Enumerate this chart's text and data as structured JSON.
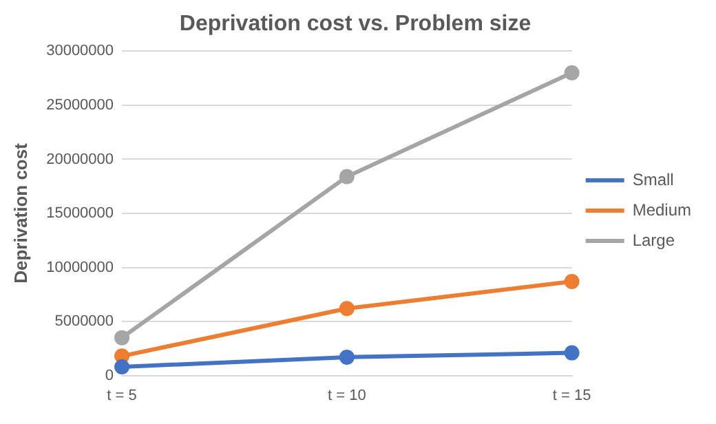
{
  "chart_data": {
    "type": "line",
    "title": "Deprivation cost vs. Problem size",
    "ylabel": "Deprivation cost",
    "categories": [
      "t = 5",
      "t = 10",
      "t = 15"
    ],
    "series": [
      {
        "name": "Small",
        "color": "#4472c4",
        "values": [
          800000,
          1700000,
          2100000
        ]
      },
      {
        "name": "Medium",
        "color": "#ed7d31",
        "values": [
          1800000,
          6200000,
          8700000
        ]
      },
      {
        "name": "Large",
        "color": "#a5a5a5",
        "values": [
          3500000,
          18400000,
          28000000
        ]
      }
    ],
    "ylim": [
      0,
      30000000
    ],
    "yticks": [
      0,
      5000000,
      10000000,
      15000000,
      20000000,
      25000000,
      30000000
    ],
    "grid": "y",
    "legend": "right",
    "marker": "circle",
    "line_style": "solid"
  }
}
